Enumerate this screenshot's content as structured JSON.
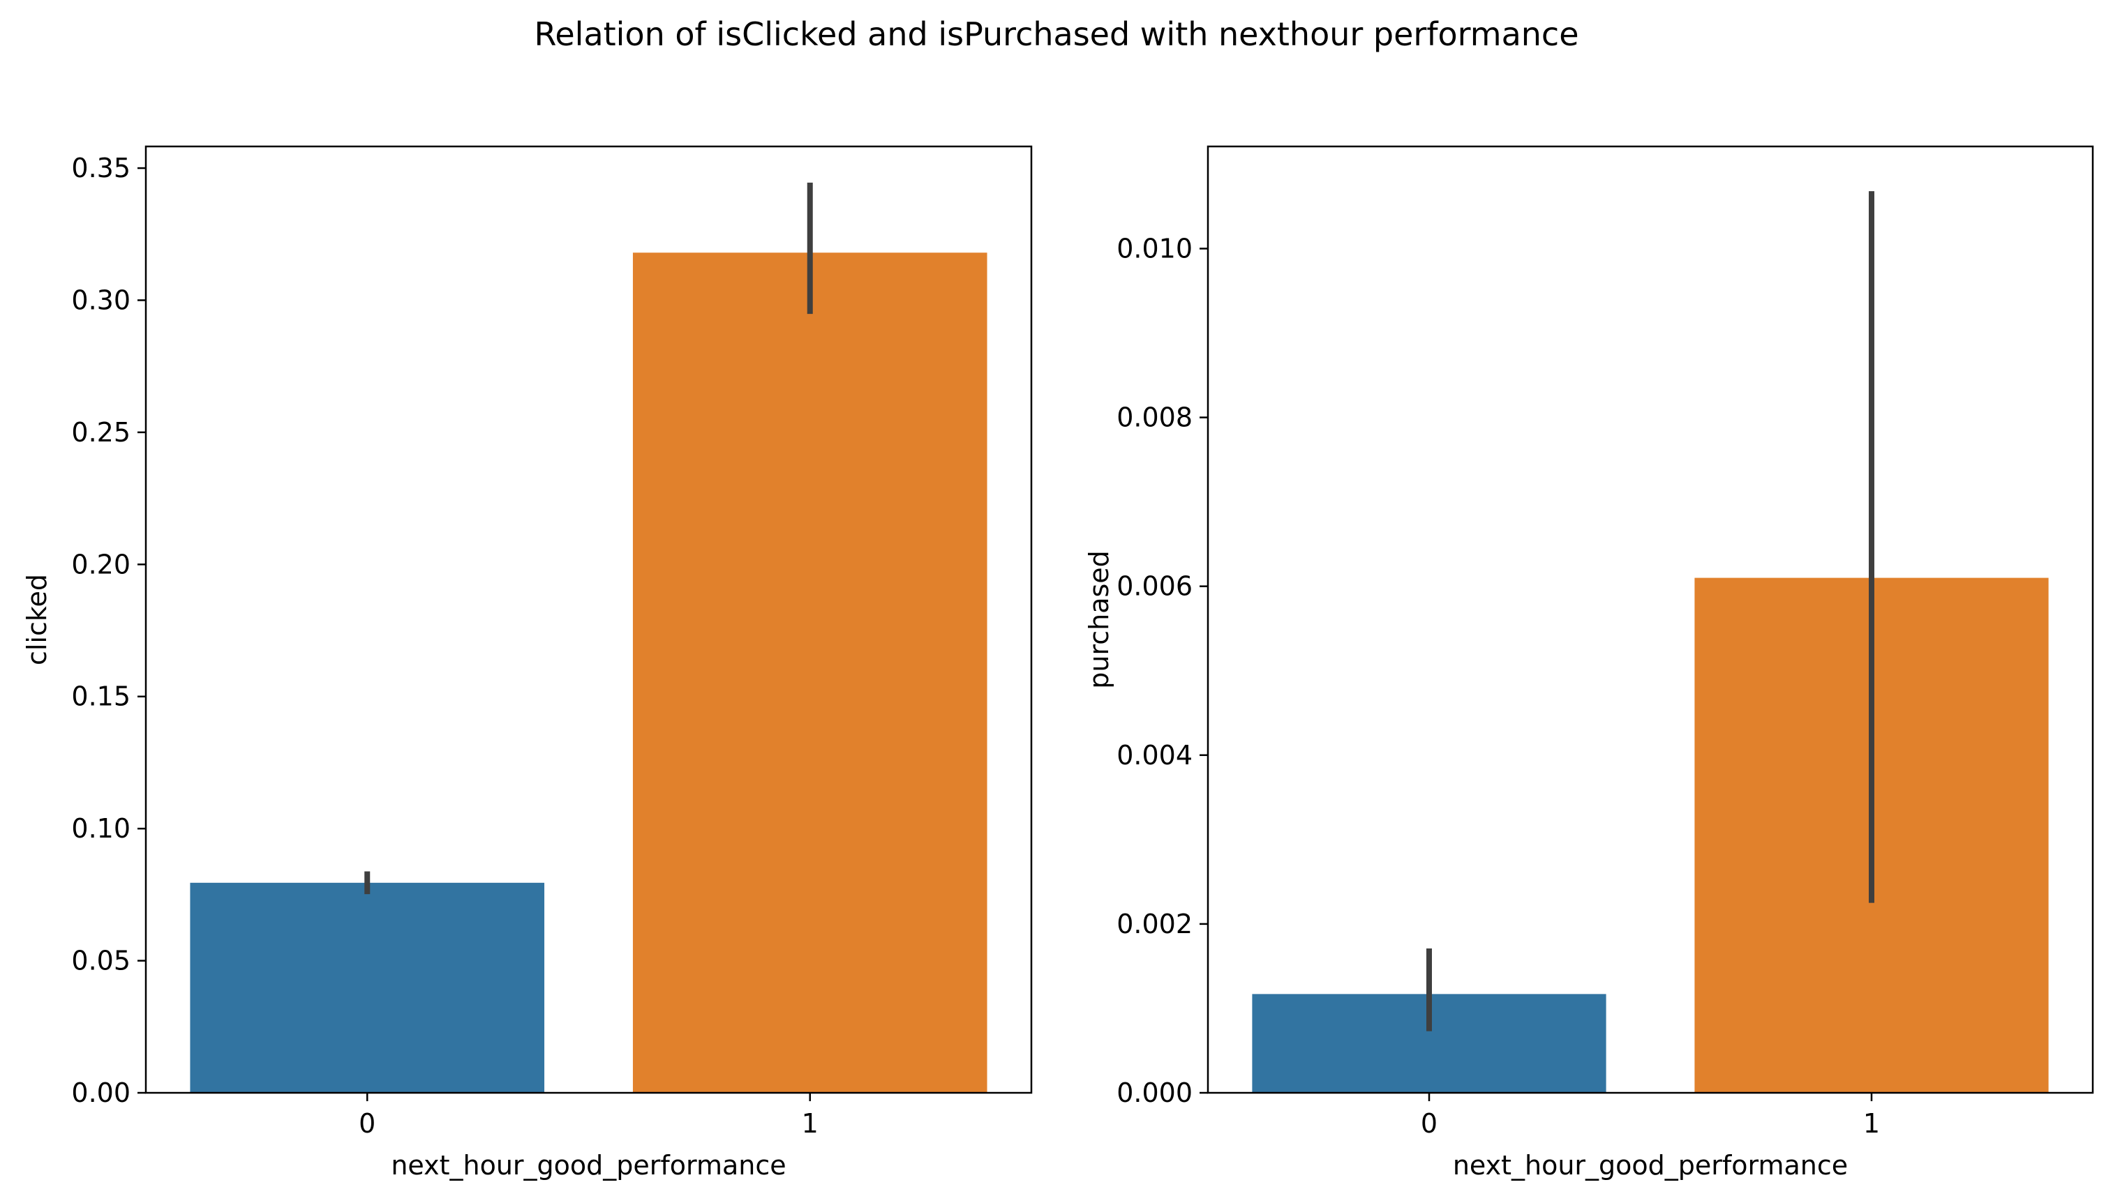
{
  "figure": {
    "suptitle": "Relation of isClicked and isPurchased with nexthour performance"
  },
  "colors": {
    "category_0": "#3274a1",
    "category_1": "#e1812c",
    "errorbar": "#3f3f3f",
    "axes": "#000000",
    "background": "#ffffff"
  },
  "chart_data": [
    {
      "type": "bar",
      "title": "",
      "xlabel": "next_hour_good_performance",
      "ylabel": "clicked",
      "categories": [
        "0",
        "1"
      ],
      "values": [
        0.0795,
        0.318
      ],
      "error_bars": [
        [
          0.0752,
          0.0838
        ],
        [
          0.2948,
          0.3445
        ]
      ],
      "ylim": [
        0,
        0.3582
      ],
      "yticks": [
        0.0,
        0.05,
        0.1,
        0.15,
        0.2,
        0.25,
        0.3,
        0.35
      ],
      "ytick_labels": [
        "0.00",
        "0.05",
        "0.10",
        "0.15",
        "0.20",
        "0.25",
        "0.30",
        "0.35"
      ],
      "grid": false,
      "legend": "none"
    },
    {
      "type": "bar",
      "title": "",
      "xlabel": "next_hour_good_performance",
      "ylabel": "purchased",
      "categories": [
        "0",
        "1"
      ],
      "values": [
        0.00117,
        0.0061
      ],
      "error_bars": [
        [
          0.00073,
          0.00171
        ],
        [
          0.00225,
          0.01068
        ]
      ],
      "ylim": [
        0,
        0.01121
      ],
      "yticks": [
        0.0,
        0.002,
        0.004,
        0.006,
        0.008,
        0.01
      ],
      "ytick_labels": [
        "0.000",
        "0.002",
        "0.004",
        "0.006",
        "0.008",
        "0.010"
      ],
      "grid": false,
      "legend": "none"
    }
  ]
}
